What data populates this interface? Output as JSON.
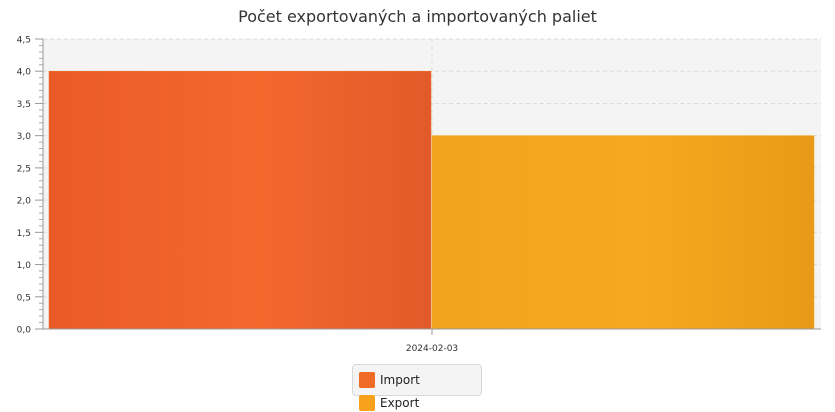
{
  "chart_data": {
    "type": "bar",
    "title": "Počet exportovaných a importovaných paliet",
    "categories": [
      "2024-02-03"
    ],
    "series": [
      {
        "name": "Import",
        "values": [
          4.0
        ],
        "color": "#f06a28"
      },
      {
        "name": "Export",
        "values": [
          3.0
        ],
        "color": "#f7a21a"
      }
    ],
    "ylim": [
      0,
      4.5
    ],
    "y_ticks": [
      "0,0",
      "0,5",
      "1,0",
      "1,5",
      "2,0",
      "2,5",
      "3,0",
      "3,5",
      "4,0",
      "4,5"
    ],
    "grid": true,
    "legend": "bottom"
  }
}
